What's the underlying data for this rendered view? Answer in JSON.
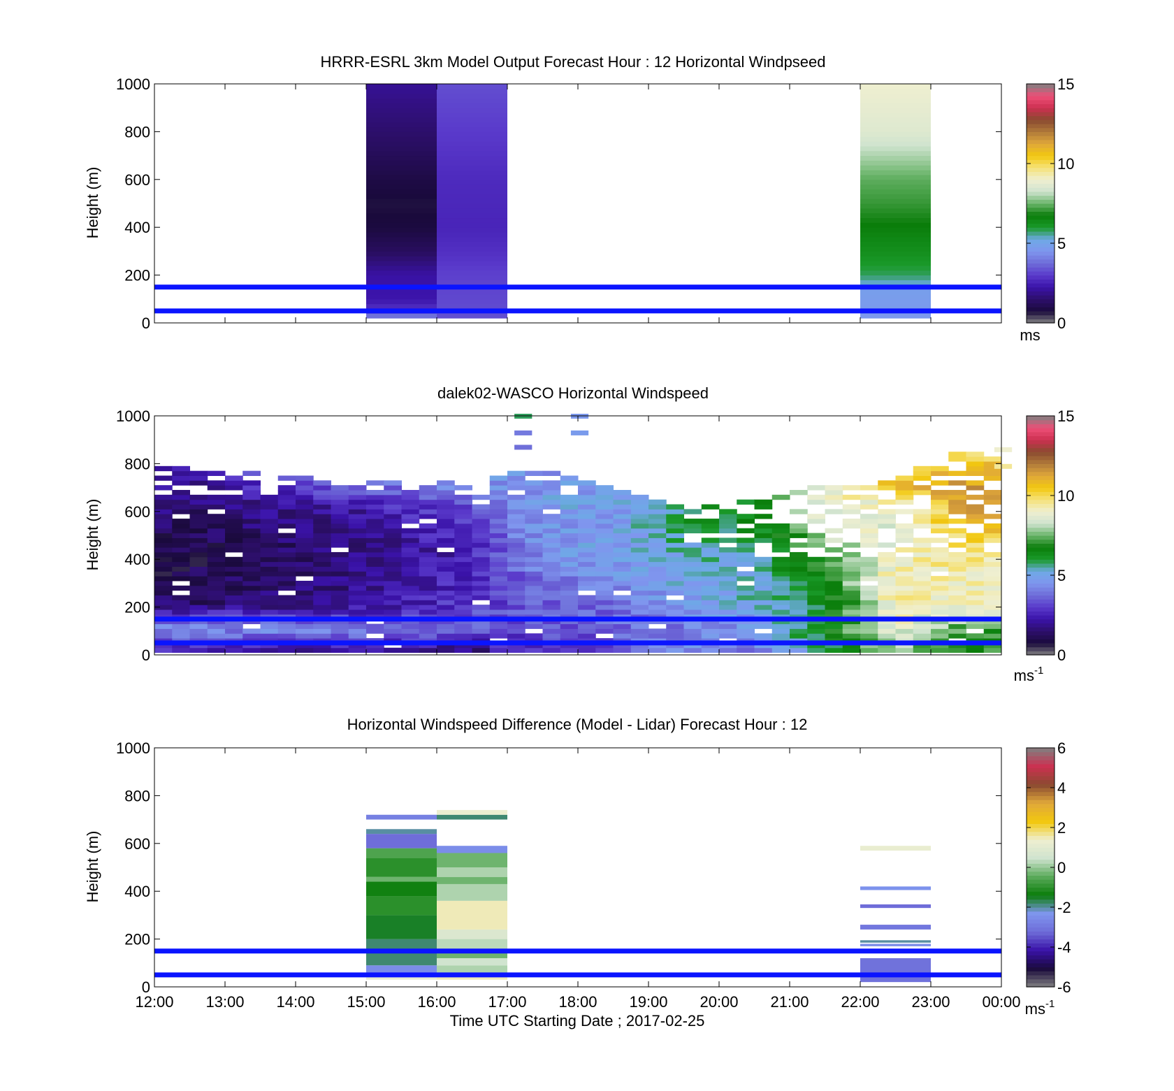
{
  "figure": {
    "xlabel": "Time UTC  Starting Date ; 2017-02-25"
  },
  "colors": {
    "blue_lines": "#0a14ff",
    "windspeed_colormap": [
      "#808080",
      "#1a0a3c",
      "#2d0f6b",
      "#3a12a8",
      "#5a3acb",
      "#6e6cd8",
      "#7f96ee",
      "#6ea9e6",
      "#1a9a2a",
      "#0a7d0a",
      "#69b469",
      "#cfe3cf",
      "#efefd0",
      "#f5e27a",
      "#f2c80f",
      "#e0a83a",
      "#b07a3a",
      "#8a4a30",
      "#cc3050",
      "#ee4f78",
      "#808080"
    ],
    "difference_colormap": [
      "#808080",
      "#1a0a3c",
      "#3a12a8",
      "#6e6cd8",
      "#7f96ee",
      "#0a7d0a",
      "#5aaa5a",
      "#cfe3cf",
      "#efefd0",
      "#f2c80f",
      "#e0a83a",
      "#8a4a30",
      "#cc3050",
      "#808080"
    ]
  },
  "chart_data": [
    {
      "type": "heatmap",
      "title": "HRRR-ESRL 3km Model Output   Forecast Hour : 12 Horizontal Windpseed",
      "ylabel": "Height (m)",
      "ylim": [
        0,
        1000
      ],
      "yticks": [
        "0",
        "200",
        "400",
        "600",
        "800",
        "1000"
      ],
      "xticks": [],
      "colorbar": {
        "range": [
          0,
          15
        ],
        "ticks": [
          "0",
          "5",
          "10",
          "15"
        ],
        "unit": "ms"
      },
      "reference_lines_m": [
        50,
        150
      ],
      "columns": [
        {
          "start_hour": 15,
          "end_hour": 16,
          "description": "dark purple profile",
          "profile": [
            [
              25,
              4
            ],
            [
              60,
              2.8
            ],
            [
              100,
              2.3
            ],
            [
              200,
              2.2
            ],
            [
              300,
              1.3
            ],
            [
              400,
              0.8
            ],
            [
              500,
              0.7
            ],
            [
              600,
              0.9
            ],
            [
              800,
              1.5
            ],
            [
              1000,
              2
            ]
          ]
        },
        {
          "start_hour": 16,
          "end_hour": 17,
          "description": "light blue profile",
          "profile": [
            [
              25,
              3.3
            ],
            [
              100,
              3.2
            ],
            [
              200,
              3.1
            ],
            [
              300,
              2.8
            ],
            [
              400,
              2.6
            ],
            [
              600,
              2.7
            ],
            [
              800,
              3.0
            ],
            [
              1000,
              3.3
            ]
          ]
        },
        {
          "start_hour": 22,
          "end_hour": 23,
          "description": "green to yellow profile",
          "profile": [
            [
              25,
              4.6
            ],
            [
              70,
              4.7
            ],
            [
              130,
              4.8
            ],
            [
              200,
              5.8
            ],
            [
              300,
              6.3
            ],
            [
              400,
              6.7
            ],
            [
              500,
              7.1
            ],
            [
              600,
              7.4
            ],
            [
              700,
              8.0
            ],
            [
              800,
              8.6
            ],
            [
              1000,
              9.0
            ]
          ]
        }
      ]
    },
    {
      "type": "heatmap",
      "title": "dalek02-WASCO  Horizontal Windspeed",
      "ylabel": "Height (m)",
      "ylim": [
        0,
        1000
      ],
      "yticks": [
        "0",
        "200",
        "400",
        "600",
        "800",
        "1000"
      ],
      "xticks": [],
      "colorbar": {
        "range": [
          0,
          15
        ],
        "ticks": [
          "0",
          "5",
          "10",
          "15"
        ],
        "unit": "ms",
        "unit_superscript": "-1"
      },
      "reference_lines_m": [
        50,
        150
      ],
      "time_range_hours": [
        12,
        24
      ],
      "bins_per_hour": 4,
      "representative_profiles": [
        {
          "hour": 12.5,
          "top_m": 780,
          "profile": [
            [
              0,
              2.4
            ],
            [
              100,
              4.2
            ],
            [
              150,
              3.2
            ],
            [
              200,
              1.5
            ],
            [
              400,
              0.9
            ],
            [
              600,
              1.6
            ],
            [
              780,
              2.2
            ]
          ]
        },
        {
          "hour": 14.5,
          "top_m": 730,
          "profile": [
            [
              0,
              1.8
            ],
            [
              100,
              4.5
            ],
            [
              150,
              3.0
            ],
            [
              200,
              1.8
            ],
            [
              400,
              1.5
            ],
            [
              600,
              2.0
            ],
            [
              730,
              4.0
            ]
          ]
        },
        {
          "hour": 16.5,
          "top_m": 720,
          "profile": [
            [
              0,
              1.5
            ],
            [
              100,
              3.5
            ],
            [
              200,
              3.0
            ],
            [
              400,
              2.5
            ],
            [
              600,
              3.2
            ],
            [
              720,
              4.6
            ]
          ]
        },
        {
          "hour": 17.5,
          "top_m": 770,
          "profile": [
            [
              0,
              3.0
            ],
            [
              100,
              3.3
            ],
            [
              200,
              3.5
            ],
            [
              400,
              4.5
            ],
            [
              600,
              4.8
            ],
            [
              760,
              4.6
            ]
          ]
        },
        {
          "hour": 18.5,
          "top_m": 700,
          "profile": [
            [
              0,
              3.2
            ],
            [
              100,
              3.6
            ],
            [
              200,
              3.8
            ],
            [
              400,
              4.8
            ],
            [
              600,
              4.7
            ]
          ]
        },
        {
          "hour": 19.5,
          "top_m": 600,
          "profile": [
            [
              0,
              4.6
            ],
            [
              100,
              4.0
            ],
            [
              200,
              4.8
            ],
            [
              400,
              5.3
            ],
            [
              560,
              6.0
            ]
          ]
        },
        {
          "hour": 20.5,
          "top_m": 640,
          "profile": [
            [
              0,
              4.0
            ],
            [
              100,
              4.5
            ],
            [
              200,
              5.2
            ],
            [
              400,
              5.6
            ],
            [
              600,
              6.5
            ]
          ]
        },
        {
          "hour": 21.5,
          "top_m": 700,
          "profile": [
            [
              0,
              5.8
            ],
            [
              100,
              6.5
            ],
            [
              200,
              6.0
            ],
            [
              400,
              7.2
            ],
            [
              600,
              9.0
            ]
          ]
        },
        {
          "hour": 22.5,
          "top_m": 720,
          "profile": [
            [
              0,
              7.8
            ],
            [
              100,
              8.8
            ],
            [
              200,
              9.4
            ],
            [
              400,
              9.2
            ],
            [
              600,
              8.5
            ],
            [
              700,
              10.5
            ]
          ]
        },
        {
          "hour": 23.5,
          "top_m": 860,
          "profile": [
            [
              0,
              6.8
            ],
            [
              100,
              7.2
            ],
            [
              200,
              9.0
            ],
            [
              400,
              9.5
            ],
            [
              600,
              11.2
            ],
            [
              700,
              11.5
            ],
            [
              860,
              9.8
            ]
          ]
        }
      ],
      "sparse_high_features": [
        {
          "hour": 17.1,
          "height_m": 1000,
          "value": 5.8
        },
        {
          "hour": 17.1,
          "height_m": 930,
          "value": 4.0
        },
        {
          "hour": 17.1,
          "height_m": 870,
          "value": 3.8
        },
        {
          "hour": 17.9,
          "height_m": 1000,
          "value": 4.6
        },
        {
          "hour": 17.9,
          "height_m": 930,
          "value": 4.7
        },
        {
          "hour": 23.9,
          "height_m": 860,
          "value": 9.0
        },
        {
          "hour": 23.9,
          "height_m": 790,
          "value": 9.5
        }
      ]
    },
    {
      "type": "heatmap",
      "title": "Horizontal Windspeed Difference (Model - Lidar) Forecast Hour : 12",
      "ylabel": "Height (m)",
      "xlabel": "Time UTC  Starting Date ; 2017-02-25",
      "ylim": [
        0,
        1000
      ],
      "yticks": [
        "0",
        "200",
        "400",
        "600",
        "800",
        "1000"
      ],
      "xticks": [
        "12:00",
        "13:00",
        "14:00",
        "15:00",
        "16:00",
        "17:00",
        "18:00",
        "19:00",
        "20:00",
        "21:00",
        "22:00",
        "23:00",
        "00:00"
      ],
      "colorbar": {
        "range": [
          -6,
          6
        ],
        "ticks": [
          "-6",
          "-4",
          "-2",
          "0",
          "2",
          "4",
          "6"
        ],
        "unit": "ms",
        "unit_superscript": "-1"
      },
      "reference_lines_m": [
        50,
        150
      ],
      "columns": [
        {
          "start_hour": 15,
          "end_hour": 16,
          "bands": [
            [
              30,
              50,
              1.2
            ],
            [
              50,
              90,
              -2.5
            ],
            [
              90,
              200,
              -1.8
            ],
            [
              200,
              300,
              -1.5
            ],
            [
              300,
              380,
              -1.0
            ],
            [
              380,
              440,
              -1.3
            ],
            [
              440,
              460,
              -0.3
            ],
            [
              460,
              540,
              -1.0
            ],
            [
              540,
              580,
              -0.6
            ],
            [
              580,
              640,
              -3.2
            ],
            [
              640,
              660,
              -2.0
            ],
            [
              700,
              720,
              -2.8
            ]
          ]
        },
        {
          "start_hour": 16,
          "end_hour": 17,
          "bands": [
            [
              30,
              60,
              1.5
            ],
            [
              60,
              90,
              0.2
            ],
            [
              90,
              120,
              0.5
            ],
            [
              120,
              150,
              -0.3
            ],
            [
              150,
              200,
              0.3
            ],
            [
              200,
              240,
              0.8
            ],
            [
              240,
              360,
              1.5
            ],
            [
              360,
              430,
              0.2
            ],
            [
              430,
              460,
              -0.3
            ],
            [
              460,
              500,
              0.2
            ],
            [
              500,
              560,
              -0.3
            ],
            [
              560,
              590,
              -2.5
            ],
            [
              700,
              720,
              -1.8
            ],
            [
              720,
              740,
              1.3
            ]
          ]
        },
        {
          "start_hour": 22,
          "end_hour": 23,
          "bands": [
            [
              20,
              120,
              -3.1
            ],
            [
              170,
              180,
              -2.5
            ],
            [
              185,
              195,
              -2.0
            ],
            [
              240,
              260,
              -3.0
            ],
            [
              330,
              345,
              -3.2
            ],
            [
              405,
              420,
              -2.4
            ],
            [
              570,
              590,
              1.2
            ]
          ]
        }
      ]
    }
  ]
}
